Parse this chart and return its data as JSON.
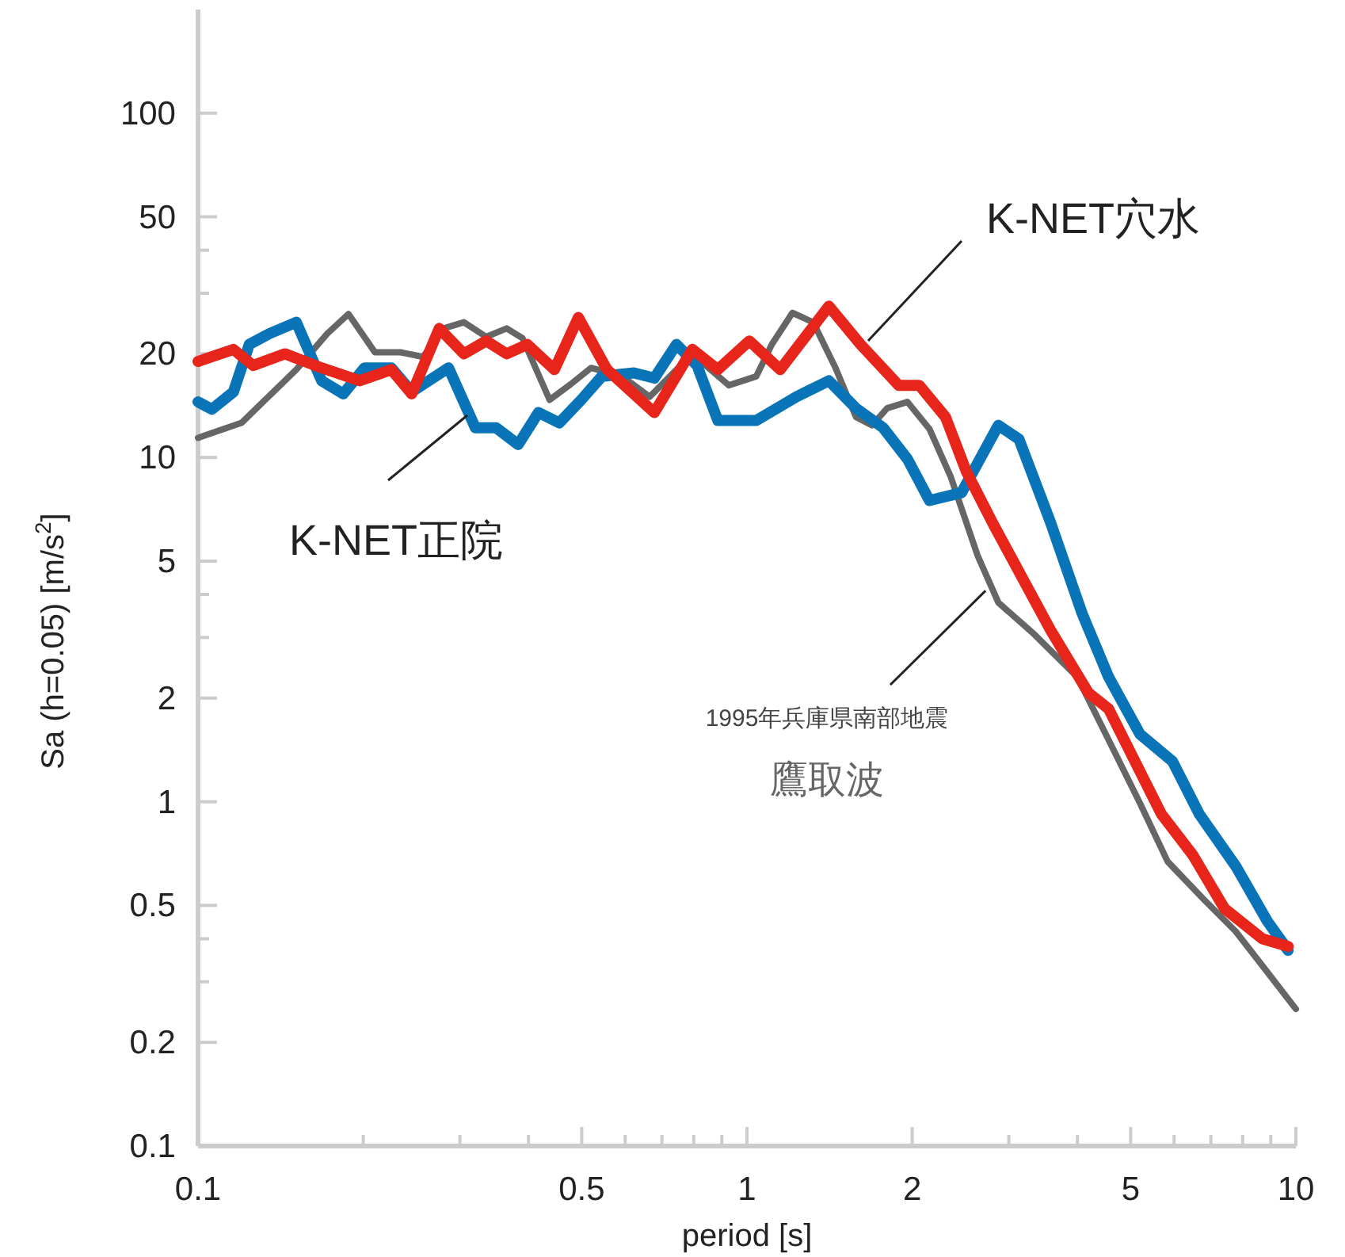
{
  "chart_data": {
    "type": "line",
    "xlabel": "period [s]",
    "ylabel": "Sa (h=0.05) [m/s$^{2}$]",
    "log": "xy",
    "xlim": [
      0.1,
      10
    ],
    "ylim": [
      0.1,
      200
    ],
    "xticks": [
      0.1,
      {
        "value": 0.2,
        "label": null
      },
      {
        "value": 0.3,
        "label": null
      },
      {
        "value": 0.4,
        "label": null
      },
      0.5,
      {
        "value": 0.6,
        "label": null
      },
      {
        "value": 0.7,
        "label": null
      },
      {
        "value": 0.8,
        "label": null
      },
      {
        "value": 0.9,
        "label": null
      },
      1,
      2,
      {
        "value": 3,
        "label": null
      },
      {
        "value": 4,
        "label": null
      },
      5,
      {
        "value": 6,
        "label": null
      },
      {
        "value": 7,
        "label": null
      },
      {
        "value": 8,
        "label": null
      },
      {
        "value": 9,
        "label": null
      },
      10
    ],
    "yticks": [
      0.1,
      0.2,
      {
        "value": 0.3,
        "label": null
      },
      {
        "value": 0.4,
        "label": null
      },
      0.5,
      1,
      2,
      {
        "value": 3,
        "label": null
      },
      {
        "value": 4,
        "label": null
      },
      5,
      10,
      20,
      {
        "value": 30,
        "label": null
      },
      {
        "value": 40,
        "label": null
      },
      50,
      100
    ],
    "annotations": [
      {
        "text": "1995年兵庫県南部地震",
        "x": 2.72,
        "y": 4.1
      }
    ],
    "series": [
      {
        "name": "鷹取波",
        "color": "#666666",
        "x": [
          0.1,
          0.12,
          0.151,
          0.172,
          0.188,
          0.21,
          0.234,
          0.257,
          0.28,
          0.305,
          0.335,
          0.365,
          0.39,
          0.437,
          0.477,
          0.52,
          0.593,
          0.665,
          0.795,
          0.927,
          1.04,
          1.11,
          1.21,
          1.32,
          1.45,
          1.58,
          1.69,
          1.8,
          1.96,
          2.15,
          2.35,
          2.63,
          2.87,
          3.34,
          4.0,
          4.56,
          5.2,
          5.84,
          6.8,
          7.77,
          8.87,
          10
        ],
        "values": [
          11.4,
          12.6,
          18.0,
          22.9,
          26.1,
          20.2,
          20.2,
          19.6,
          23.7,
          24.7,
          22.4,
          23.7,
          22.2,
          14.7,
          16.3,
          18.2,
          17.2,
          15.0,
          20.0,
          16.2,
          17.2,
          21.3,
          26.3,
          24.7,
          18.2,
          13.1,
          12.4,
          13.9,
          14.5,
          12.1,
          8.8,
          5.2,
          3.79,
          3.06,
          2.3,
          1.51,
          0.99,
          0.67,
          0.52,
          0.42,
          0.32,
          0.25
        ]
      },
      {
        "name": "K-NET正院",
        "color": "#0a74b8",
        "x": [
          0.1,
          0.106,
          0.116,
          0.124,
          0.135,
          0.151,
          0.168,
          0.184,
          0.201,
          0.225,
          0.245,
          0.286,
          0.32,
          0.349,
          0.383,
          0.417,
          0.455,
          0.499,
          0.544,
          0.622,
          0.678,
          0.744,
          0.811,
          0.885,
          1.04,
          1.23,
          1.41,
          1.58,
          1.77,
          1.96,
          2.15,
          2.46,
          2.87,
          3.13,
          3.57,
          4.08,
          4.56,
          5.2,
          5.96,
          6.67,
          7.77,
          8.87,
          9.68
        ],
        "values": [
          14.5,
          13.8,
          15.5,
          21.3,
          22.9,
          24.7,
          16.7,
          15.3,
          18.2,
          18.2,
          15.5,
          18.2,
          12.2,
          12.2,
          10.9,
          13.5,
          12.6,
          14.7,
          17.2,
          17.6,
          17.0,
          21.3,
          18.5,
          12.8,
          12.8,
          15.0,
          16.7,
          13.9,
          12.2,
          9.9,
          7.5,
          7.9,
          12.4,
          11.3,
          6.5,
          3.52,
          2.3,
          1.57,
          1.31,
          0.92,
          0.65,
          0.45,
          0.37
        ]
      },
      {
        "name": "K-NET穴水",
        "color": "#e8251b",
        "x": [
          0.1,
          0.116,
          0.126,
          0.144,
          0.168,
          0.197,
          0.225,
          0.245,
          0.275,
          0.305,
          0.335,
          0.365,
          0.398,
          0.446,
          0.493,
          0.556,
          0.678,
          0.795,
          0.885,
          1.01,
          1.15,
          1.41,
          1.61,
          1.89,
          2.06,
          2.3,
          2.51,
          2.81,
          3.57,
          4.19,
          4.56,
          5.69,
          6.49,
          7.41,
          8.69,
          9.68
        ],
        "values": [
          19.0,
          20.6,
          18.5,
          20.0,
          18.2,
          16.7,
          18.0,
          15.3,
          23.7,
          20.0,
          21.8,
          20.0,
          21.3,
          18.0,
          25.5,
          18.0,
          13.5,
          20.6,
          18.0,
          21.8,
          18.0,
          27.5,
          21.3,
          16.2,
          16.2,
          13.1,
          9.1,
          6.4,
          3.16,
          2.07,
          1.86,
          0.92,
          0.7,
          0.49,
          0.4,
          0.38
        ]
      }
    ]
  }
}
